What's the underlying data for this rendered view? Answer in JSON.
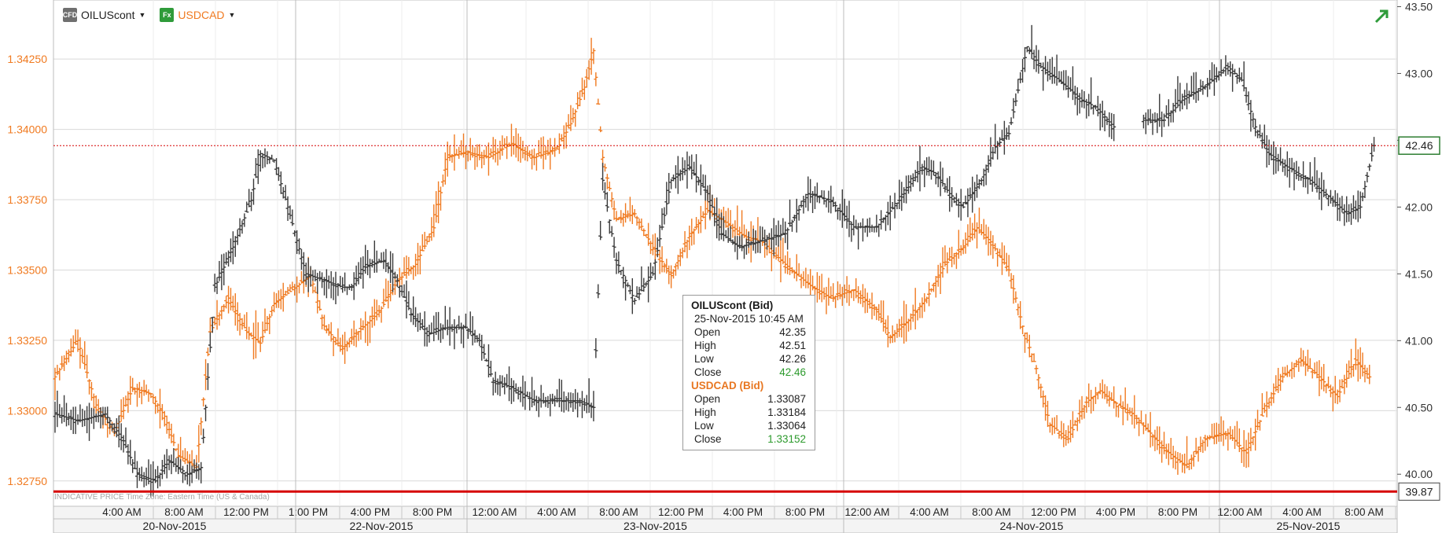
{
  "legend": [
    {
      "symbol": "CFD",
      "name": "OILUScont"
    },
    {
      "symbol": "Fx",
      "name": "USDCAD"
    }
  ],
  "tooltip": {
    "s1_title": "OILUScont (Bid)",
    "datetime": "25-Nov-2015 10:45 AM",
    "s1_rows": [
      {
        "label": "Open",
        "value": "42.35"
      },
      {
        "label": "High",
        "value": "42.51"
      },
      {
        "label": "Low",
        "value": "42.26"
      },
      {
        "label": "Close",
        "value": "42.46"
      }
    ],
    "s2_title": "USDCAD (Bid)",
    "s2_rows": [
      {
        "label": "Open",
        "value": "1.33087"
      },
      {
        "label": "High",
        "value": "1.33184"
      },
      {
        "label": "Low",
        "value": "1.33064"
      },
      {
        "label": "Close",
        "value": "1.33152"
      }
    ]
  },
  "footer_note": "INDICATIVE PRICE    Time Zone: Eastern Time (US & Canada)",
  "colors": {
    "oil": "#3a3a3a",
    "usdcad": "#f07a20",
    "grid": "#d9d9d9",
    "marker": "#d60000",
    "badge_green": "#2e7d32"
  },
  "chart_data": {
    "type": "ohlc",
    "left_axis": {
      "series": "USDCAD",
      "ticks": [
        "1.32750",
        "1.33000",
        "1.33250",
        "1.33500",
        "1.33750",
        "1.34000",
        "1.34250"
      ],
      "range": [
        1.3266,
        1.3446
      ]
    },
    "right_axis": {
      "series": "OILUScont",
      "ticks": [
        "40.00",
        "40.50",
        "41.00",
        "41.50",
        "42.00",
        "42.50",
        "43.00",
        "43.50"
      ],
      "range": [
        39.76,
        43.55
      ]
    },
    "current_levels": {
      "oil_last": "42.46",
      "lower_marker": "39.87"
    },
    "time_labels": [
      "4:00 AM",
      "8:00 AM",
      "12:00 PM",
      "1:00 PM",
      "4:00 PM",
      "8:00 PM",
      "12:00 AM",
      "4:00 AM",
      "8:00 AM",
      "12:00 PM",
      "4:00 PM",
      "8:00 PM",
      "12:00 AM",
      "4:00 AM",
      "8:00 AM",
      "12:00 PM",
      "4:00 PM",
      "8:00 PM",
      "12:00 AM",
      "4:00 AM",
      "8:00 AM"
    ],
    "date_labels": [
      "20-Nov-2015",
      "22-Nov-2015",
      "23-Nov-2015",
      "24-Nov-2015",
      "25-Nov-2015"
    ],
    "series": [
      {
        "name": "OILUScont",
        "axis": "right",
        "path": [
          [
            0,
            40.45
          ],
          [
            10,
            40.4
          ],
          [
            22,
            40.45
          ],
          [
            30,
            40.25
          ],
          [
            36,
            40.0
          ],
          [
            44,
            39.95
          ],
          [
            50,
            40.1
          ],
          [
            58,
            40.0
          ],
          [
            64,
            40.05
          ],
          [
            70,
            41.4
          ],
          [
            78,
            41.7
          ],
          [
            86,
            42.05
          ],
          [
            90,
            42.4
          ],
          [
            96,
            42.35
          ],
          [
            102,
            42.0
          ],
          [
            110,
            41.5
          ],
          [
            118,
            41.45
          ],
          [
            126,
            41.4
          ],
          [
            130,
            41.4
          ],
          [
            136,
            41.55
          ],
          [
            144,
            41.6
          ],
          [
            150,
            41.45
          ],
          [
            156,
            41.2
          ],
          [
            164,
            41.05
          ],
          [
            172,
            41.1
          ],
          [
            180,
            41.1
          ],
          [
            186,
            41.0
          ],
          [
            192,
            40.7
          ],
          [
            200,
            40.65
          ],
          [
            210,
            40.55
          ],
          [
            220,
            40.55
          ],
          [
            230,
            40.55
          ],
          [
            236,
            40.5
          ],
          [
            240,
            42.2
          ],
          [
            246,
            41.6
          ],
          [
            254,
            41.3
          ],
          [
            262,
            41.5
          ],
          [
            270,
            42.2
          ],
          [
            278,
            42.3
          ],
          [
            286,
            42.1
          ],
          [
            292,
            41.8
          ],
          [
            300,
            41.7
          ],
          [
            310,
            41.75
          ],
          [
            320,
            41.8
          ],
          [
            330,
            42.1
          ],
          [
            340,
            42.05
          ],
          [
            350,
            41.85
          ],
          [
            360,
            41.85
          ],
          [
            370,
            42.05
          ],
          [
            380,
            42.3
          ],
          [
            386,
            42.25
          ],
          [
            392,
            42.1
          ],
          [
            398,
            42.0
          ],
          [
            406,
            42.2
          ],
          [
            412,
            42.45
          ],
          [
            418,
            42.55
          ],
          [
            426,
            43.2
          ],
          [
            432,
            43.05
          ],
          [
            440,
            42.95
          ],
          [
            450,
            42.8
          ],
          [
            456,
            42.75
          ],
          [
            464,
            42.6
          ],
          [
            470,
            null
          ],
          [
            476,
            42.65
          ],
          [
            486,
            42.65
          ],
          [
            494,
            42.8
          ],
          [
            504,
            42.9
          ],
          [
            514,
            43.05
          ],
          [
            520,
            42.95
          ],
          [
            526,
            42.6
          ],
          [
            532,
            42.4
          ],
          [
            540,
            42.3
          ],
          [
            550,
            42.2
          ],
          [
            560,
            42.05
          ],
          [
            566,
            41.95
          ],
          [
            572,
            42.0
          ],
          [
            578,
            42.46
          ]
        ]
      },
      {
        "name": "USDCAD",
        "axis": "left",
        "path": [
          [
            0,
            1.3312
          ],
          [
            10,
            1.3325
          ],
          [
            18,
            1.3302
          ],
          [
            26,
            1.3292
          ],
          [
            34,
            1.3308
          ],
          [
            42,
            1.3306
          ],
          [
            48,
            1.3298
          ],
          [
            54,
            1.3284
          ],
          [
            62,
            1.328
          ],
          [
            68,
            1.3328
          ],
          [
            76,
            1.334
          ],
          [
            84,
            1.3328
          ],
          [
            90,
            1.3324
          ],
          [
            96,
            1.3338
          ],
          [
            104,
            1.3343
          ],
          [
            112,
            1.3348
          ],
          [
            118,
            1.333
          ],
          [
            126,
            1.3322
          ],
          [
            134,
            1.3329
          ],
          [
            142,
            1.3335
          ],
          [
            150,
            1.3346
          ],
          [
            158,
            1.3352
          ],
          [
            166,
            1.3365
          ],
          [
            172,
            1.339
          ],
          [
            180,
            1.3392
          ],
          [
            190,
            1.339
          ],
          [
            200,
            1.3395
          ],
          [
            210,
            1.339
          ],
          [
            220,
            1.3393
          ],
          [
            226,
            1.3402
          ],
          [
            232,
            1.3415
          ],
          [
            236,
            1.3428
          ],
          [
            240,
            1.339
          ],
          [
            246,
            1.3368
          ],
          [
            254,
            1.337
          ],
          [
            262,
            1.3358
          ],
          [
            270,
            1.3348
          ],
          [
            278,
            1.3362
          ],
          [
            286,
            1.3371
          ],
          [
            294,
            1.3367
          ],
          [
            302,
            1.3362
          ],
          [
            310,
            1.336
          ],
          [
            320,
            1.3352
          ],
          [
            330,
            1.3345
          ],
          [
            340,
            1.334
          ],
          [
            350,
            1.3343
          ],
          [
            360,
            1.3336
          ],
          [
            366,
            1.3326
          ],
          [
            374,
            1.3332
          ],
          [
            382,
            1.334
          ],
          [
            390,
            1.3352
          ],
          [
            398,
            1.3358
          ],
          [
            404,
            1.3365
          ],
          [
            410,
            1.336
          ],
          [
            418,
            1.335
          ],
          [
            424,
            1.333
          ],
          [
            430,
            1.3315
          ],
          [
            436,
            1.3295
          ],
          [
            444,
            1.329
          ],
          [
            452,
            1.3303
          ],
          [
            458,
            1.3307
          ],
          [
            466,
            1.3302
          ],
          [
            472,
            1.3299
          ],
          [
            480,
            1.3292
          ],
          [
            488,
            1.3285
          ],
          [
            496,
            1.328
          ],
          [
            504,
            1.329
          ],
          [
            514,
            1.3292
          ],
          [
            522,
            1.3285
          ],
          [
            530,
            1.33
          ],
          [
            538,
            1.3312
          ],
          [
            546,
            1.3318
          ],
          [
            554,
            1.3312
          ],
          [
            562,
            1.3305
          ],
          [
            570,
            1.3318
          ],
          [
            576,
            1.3312
          ]
        ]
      }
    ]
  }
}
